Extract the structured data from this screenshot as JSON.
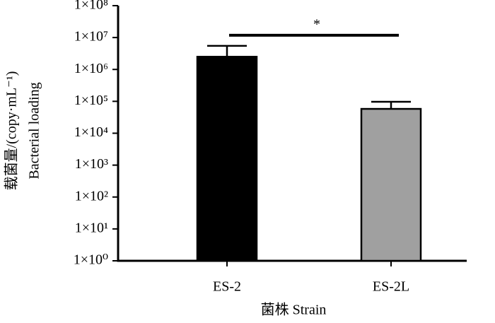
{
  "chart_data": {
    "type": "bar",
    "ylabel": [
      "载菌量/(copy·mL⁻¹)",
      "Bacterial loading"
    ],
    "xlabel": "菌株 Strain",
    "categories": [
      "ES-2",
      "ES-2L"
    ],
    "values": [
      2500000,
      58000
    ],
    "errors": [
      3000000,
      39000
    ],
    "colors": [
      "#000000",
      "#a0a0a0"
    ],
    "log_scale": true,
    "ylim": [
      1,
      100000000
    ],
    "yticks": [
      {
        "value": 1,
        "label": "1×10⁰"
      },
      {
        "value": 10,
        "label": "1×10¹"
      },
      {
        "value": 100,
        "label": "1×10²"
      },
      {
        "value": 1000,
        "label": "1×10³"
      },
      {
        "value": 10000,
        "label": "1×10⁴"
      },
      {
        "value": 100000,
        "label": "1×10⁵"
      },
      {
        "value": 1000000,
        "label": "1×10⁶"
      },
      {
        "value": 10000000,
        "label": "1×10⁷"
      },
      {
        "value": 100000000,
        "label": "1×10⁸"
      }
    ],
    "significance": [
      {
        "label": "*",
        "categories": [
          "ES-2",
          "ES-2L"
        ]
      }
    ]
  }
}
